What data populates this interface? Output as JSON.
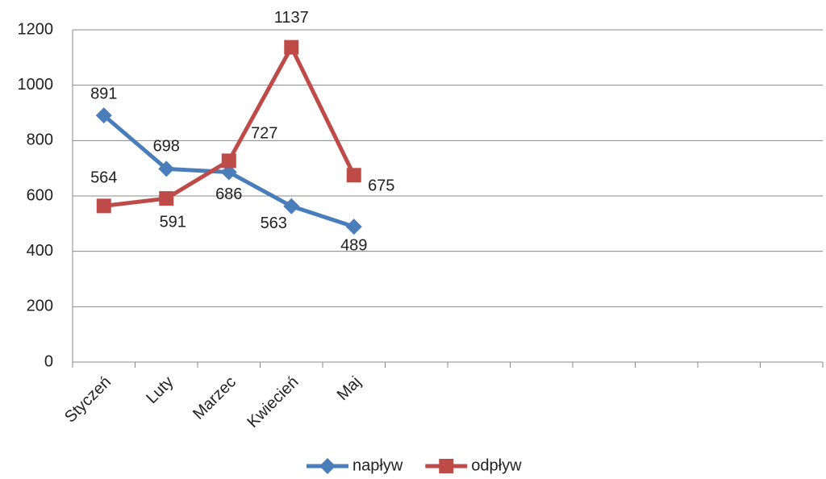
{
  "chart_data": {
    "type": "line",
    "categories": [
      "Styczeń",
      "Luty",
      "Marzec",
      "Kwiecień",
      "Maj",
      null,
      null,
      null,
      null,
      null,
      null,
      null
    ],
    "series": [
      {
        "name": "napływ",
        "color": "#4a7ebb",
        "marker": "diamond",
        "values": [
          891,
          698,
          686,
          563,
          489,
          null,
          null,
          null,
          null,
          null,
          null,
          null
        ]
      },
      {
        "name": "odpływ",
        "color": "#be4b48",
        "marker": "square",
        "values": [
          564,
          591,
          727,
          1137,
          675,
          null,
          null,
          null,
          null,
          null,
          null,
          null
        ]
      }
    ],
    "ylim": [
      0,
      1200
    ],
    "yticks": [
      0,
      200,
      400,
      600,
      800,
      1000,
      1200
    ],
    "grid": true,
    "legend": "bottom"
  }
}
